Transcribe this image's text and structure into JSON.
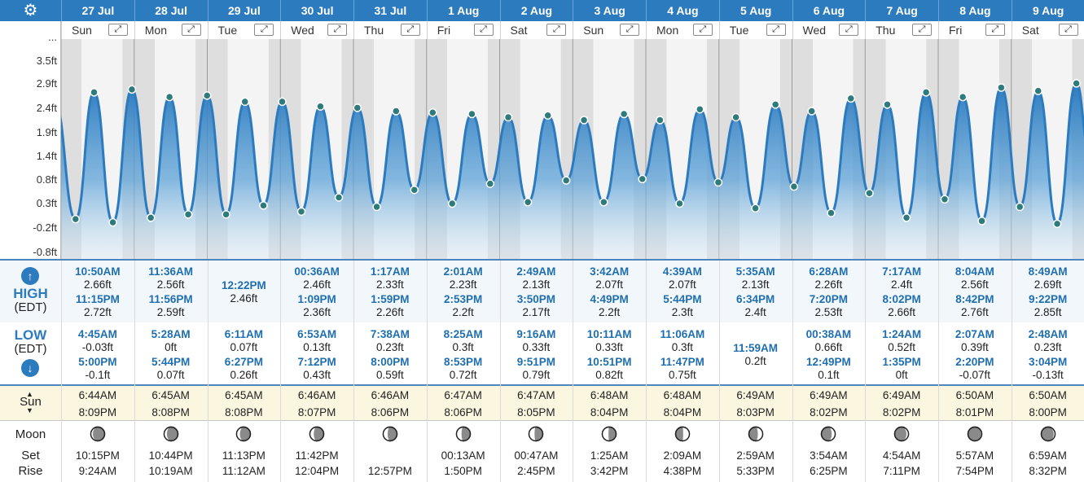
{
  "colors": {
    "header_bg": "#2d7bbf",
    "curve": "#2d7bbf",
    "time_text": "#1f6fb0"
  },
  "settings_icon": "gear-icon",
  "y_axis": {
    "ticks": [
      "...",
      "3.5ft",
      "2.9ft",
      "2.4ft",
      "1.9ft",
      "1.4ft",
      "0.8ft",
      "0.3ft",
      "-0.2ft",
      "-0.8ft"
    ]
  },
  "labels": {
    "high": "HIGH",
    "high_tz": "(EDT)",
    "low": "LOW",
    "low_tz": "(EDT)",
    "sun": "Sun",
    "moon": "Moon",
    "set": "Set",
    "rise": "Rise"
  },
  "expand_icon_glyph": "⤢",
  "days": [
    {
      "date": "27 Jul",
      "dow": "Sun",
      "high": [
        {
          "time": "10:50AM",
          "height": "2.66ft"
        },
        {
          "time": "11:15PM",
          "height": "2.72ft"
        }
      ],
      "low": [
        {
          "time": "4:45AM",
          "height": "-0.03ft"
        },
        {
          "time": "5:00PM",
          "height": "-0.1ft"
        }
      ],
      "sunrise": "6:44AM",
      "sunset": "8:09PM",
      "moon_phase": 0.15,
      "moonset": "10:15PM",
      "moonrise": "9:24AM"
    },
    {
      "date": "28 Jul",
      "dow": "Mon",
      "high": [
        {
          "time": "11:36AM",
          "height": "2.56ft"
        },
        {
          "time": "11:56PM",
          "height": "2.59ft"
        }
      ],
      "low": [
        {
          "time": "5:28AM",
          "height": "0ft"
        },
        {
          "time": "5:44PM",
          "height": "0.07ft"
        }
      ],
      "sunrise": "6:45AM",
      "sunset": "8:08PM",
      "moon_phase": 0.2,
      "moonset": "10:44PM",
      "moonrise": "10:19AM"
    },
    {
      "date": "29 Jul",
      "dow": "Tue",
      "high": [
        {
          "time": "12:22PM",
          "height": "2.46ft"
        }
      ],
      "low": [
        {
          "time": "6:11AM",
          "height": "0.07ft"
        },
        {
          "time": "6:27PM",
          "height": "0.26ft"
        }
      ],
      "sunrise": "6:45AM",
      "sunset": "8:08PM",
      "moon_phase": 0.24,
      "moonset": "11:13PM",
      "moonrise": "11:12AM"
    },
    {
      "date": "30 Jul",
      "dow": "Wed",
      "high": [
        {
          "time": "00:36AM",
          "height": "2.46ft"
        },
        {
          "time": "1:09PM",
          "height": "2.36ft"
        }
      ],
      "low": [
        {
          "time": "6:53AM",
          "height": "0.13ft"
        },
        {
          "time": "7:12PM",
          "height": "0.43ft"
        }
      ],
      "sunrise": "6:46AM",
      "sunset": "8:07PM",
      "moon_phase": 0.28,
      "moonset": "11:42PM",
      "moonrise": "12:04PM"
    },
    {
      "date": "31 Jul",
      "dow": "Thu",
      "high": [
        {
          "time": "1:17AM",
          "height": "2.33ft"
        },
        {
          "time": "1:59PM",
          "height": "2.26ft"
        }
      ],
      "low": [
        {
          "time": "7:38AM",
          "height": "0.23ft"
        },
        {
          "time": "8:00PM",
          "height": "0.59ft"
        }
      ],
      "sunrise": "6:46AM",
      "sunset": "8:06PM",
      "moon_phase": 0.32,
      "moonset": "",
      "moonrise": "12:57PM"
    },
    {
      "date": "1 Aug",
      "dow": "Fri",
      "high": [
        {
          "time": "2:01AM",
          "height": "2.23ft"
        },
        {
          "time": "2:53PM",
          "height": "2.2ft"
        }
      ],
      "low": [
        {
          "time": "8:25AM",
          "height": "0.3ft"
        },
        {
          "time": "8:53PM",
          "height": "0.72ft"
        }
      ],
      "sunrise": "6:47AM",
      "sunset": "8:06PM",
      "moon_phase": 0.36,
      "moonset": "00:13AM",
      "moonrise": "1:50PM"
    },
    {
      "date": "2 Aug",
      "dow": "Sat",
      "high": [
        {
          "time": "2:49AM",
          "height": "2.13ft"
        },
        {
          "time": "3:50PM",
          "height": "2.17ft"
        }
      ],
      "low": [
        {
          "time": "9:16AM",
          "height": "0.33ft"
        },
        {
          "time": "9:51PM",
          "height": "0.79ft"
        }
      ],
      "sunrise": "6:47AM",
      "sunset": "8:05PM",
      "moon_phase": 0.4,
      "moonset": "00:47AM",
      "moonrise": "2:45PM"
    },
    {
      "date": "3 Aug",
      "dow": "Sun",
      "high": [
        {
          "time": "3:42AM",
          "height": "2.07ft"
        },
        {
          "time": "4:49PM",
          "height": "2.2ft"
        }
      ],
      "low": [
        {
          "time": "10:11AM",
          "height": "0.33ft"
        },
        {
          "time": "10:51PM",
          "height": "0.82ft"
        }
      ],
      "sunrise": "6:48AM",
      "sunset": "8:04PM",
      "moon_phase": 0.45,
      "moonset": "1:25AM",
      "moonrise": "3:42PM"
    },
    {
      "date": "4 Aug",
      "dow": "Mon",
      "high": [
        {
          "time": "4:39AM",
          "height": "2.07ft"
        },
        {
          "time": "5:44PM",
          "height": "2.3ft"
        }
      ],
      "low": [
        {
          "time": "11:06AM",
          "height": "0.3ft"
        },
        {
          "time": "11:47PM",
          "height": "0.75ft"
        }
      ],
      "sunrise": "6:48AM",
      "sunset": "8:04PM",
      "moon_phase": 0.55,
      "moonset": "2:09AM",
      "moonrise": "4:38PM"
    },
    {
      "date": "5 Aug",
      "dow": "Tue",
      "high": [
        {
          "time": "5:35AM",
          "height": "2.13ft"
        },
        {
          "time": "6:34PM",
          "height": "2.4ft"
        }
      ],
      "low": [
        {
          "time": "11:59AM",
          "height": "0.2ft"
        }
      ],
      "sunrise": "6:49AM",
      "sunset": "8:03PM",
      "moon_phase": 0.65,
      "moonset": "2:59AM",
      "moonrise": "5:33PM"
    },
    {
      "date": "6 Aug",
      "dow": "Wed",
      "high": [
        {
          "time": "6:28AM",
          "height": "2.26ft"
        },
        {
          "time": "7:20PM",
          "height": "2.53ft"
        }
      ],
      "low": [
        {
          "time": "00:38AM",
          "height": "0.66ft"
        },
        {
          "time": "12:49PM",
          "height": "0.1ft"
        }
      ],
      "sunrise": "6:49AM",
      "sunset": "8:02PM",
      "moon_phase": 0.75,
      "moonset": "3:54AM",
      "moonrise": "6:25PM"
    },
    {
      "date": "7 Aug",
      "dow": "Thu",
      "high": [
        {
          "time": "7:17AM",
          "height": "2.4ft"
        },
        {
          "time": "8:02PM",
          "height": "2.66ft"
        }
      ],
      "low": [
        {
          "time": "1:24AM",
          "height": "0.52ft"
        },
        {
          "time": "1:35PM",
          "height": "0ft"
        }
      ],
      "sunrise": "6:49AM",
      "sunset": "8:02PM",
      "moon_phase": 0.85,
      "moonset": "4:54AM",
      "moonrise": "7:11PM"
    },
    {
      "date": "8 Aug",
      "dow": "Fri",
      "high": [
        {
          "time": "8:04AM",
          "height": "2.56ft"
        },
        {
          "time": "8:42PM",
          "height": "2.76ft"
        }
      ],
      "low": [
        {
          "time": "2:07AM",
          "height": "0.39ft"
        },
        {
          "time": "2:20PM",
          "height": "-0.07ft"
        }
      ],
      "sunrise": "6:50AM",
      "sunset": "8:01PM",
      "moon_phase": 0.95,
      "moonset": "5:57AM",
      "moonrise": "7:54PM"
    },
    {
      "date": "9 Aug",
      "dow": "Sat",
      "high": [
        {
          "time": "8:49AM",
          "height": "2.69ft"
        },
        {
          "time": "9:22PM",
          "height": "2.85ft"
        }
      ],
      "low": [
        {
          "time": "2:48AM",
          "height": "0.23ft"
        },
        {
          "time": "3:04PM",
          "height": "-0.13ft"
        }
      ],
      "sunrise": "6:50AM",
      "sunset": "8:00PM",
      "moon_phase": 0.9,
      "moonset": "6:59AM",
      "moonrise": "8:32PM"
    }
  ]
}
